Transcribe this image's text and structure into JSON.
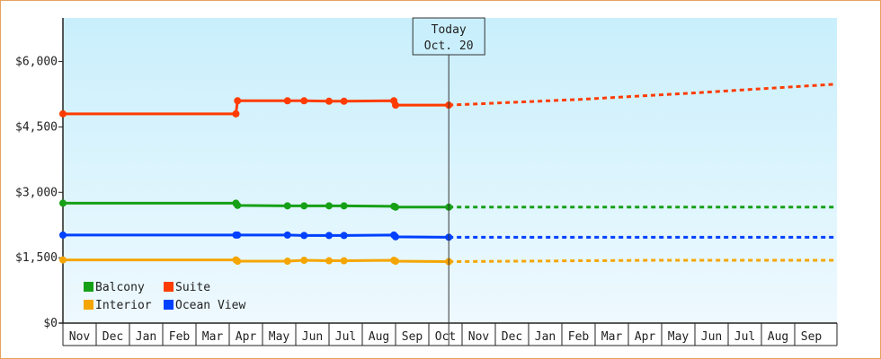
{
  "chart_data": {
    "type": "line",
    "title": "",
    "xlabel": "",
    "ylabel": "",
    "ylim": [
      0,
      7000
    ],
    "yticks": [
      0,
      1500,
      3000,
      4500,
      6000
    ],
    "ytick_labels": [
      "$0",
      "$1,500",
      "$3,000",
      "$4,500",
      "$6,000"
    ],
    "months": [
      "Nov",
      "Dec",
      "Jan",
      "Feb",
      "Mar",
      "Apr",
      "May",
      "Jun",
      "Jul",
      "Aug",
      "Sep",
      "Oct",
      "Nov",
      "Dec",
      "Jan",
      "Feb",
      "Mar",
      "Apr",
      "May",
      "Jun",
      "Jul",
      "Aug",
      "Sep"
    ],
    "grid": false,
    "today_marker": {
      "line1": "Today",
      "line2": "Oct. 20",
      "x": 11.6
    },
    "legend": {
      "placement": "bottom-left",
      "entries": [
        {
          "label": "Balcony",
          "color": "#16a016"
        },
        {
          "label": "Suite",
          "color": "#ff3c00"
        },
        {
          "label": "Interior",
          "color": "#f5a500"
        },
        {
          "label": "Ocean View",
          "color": "#0040ff"
        }
      ]
    },
    "series": [
      {
        "name": "Balcony",
        "color": "#16a016",
        "points": [
          [
            0,
            2750
          ],
          [
            5.2,
            2750
          ],
          [
            5.25,
            2700
          ],
          [
            6.75,
            2690
          ],
          [
            7.25,
            2690
          ],
          [
            8.0,
            2690
          ],
          [
            8.45,
            2690
          ],
          [
            9.95,
            2680
          ],
          [
            10.0,
            2660
          ],
          [
            11.6,
            2660
          ]
        ],
        "forecast": [
          [
            11.6,
            2660
          ],
          [
            23.2,
            2660
          ]
        ]
      },
      {
        "name": "Suite",
        "color": "#ff3c00",
        "points": [
          [
            0,
            4800
          ],
          [
            5.2,
            4800
          ],
          [
            5.25,
            5100
          ],
          [
            6.75,
            5100
          ],
          [
            7.25,
            5100
          ],
          [
            8.0,
            5090
          ],
          [
            8.45,
            5090
          ],
          [
            9.95,
            5100
          ],
          [
            10.0,
            5000
          ],
          [
            11.6,
            5000
          ]
        ],
        "forecast": [
          [
            11.6,
            5000
          ],
          [
            15.5,
            5130
          ],
          [
            19.0,
            5280
          ],
          [
            23.2,
            5480
          ]
        ]
      },
      {
        "name": "Interior",
        "color": "#f5a500",
        "points": [
          [
            0,
            1450
          ],
          [
            5.2,
            1450
          ],
          [
            5.25,
            1420
          ],
          [
            6.75,
            1420
          ],
          [
            7.25,
            1440
          ],
          [
            8.0,
            1430
          ],
          [
            8.45,
            1430
          ],
          [
            9.95,
            1440
          ],
          [
            10.0,
            1420
          ],
          [
            11.6,
            1410
          ]
        ],
        "forecast": [
          [
            11.6,
            1410
          ],
          [
            17.5,
            1440
          ],
          [
            23.2,
            1440
          ]
        ]
      },
      {
        "name": "Ocean View",
        "color": "#0040ff",
        "points": [
          [
            0,
            2020
          ],
          [
            5.2,
            2020
          ],
          [
            5.25,
            2020
          ],
          [
            6.75,
            2020
          ],
          [
            7.25,
            2010
          ],
          [
            8.0,
            2010
          ],
          [
            8.45,
            2010
          ],
          [
            9.95,
            2020
          ],
          [
            10.0,
            1980
          ],
          [
            11.6,
            1970
          ]
        ],
        "forecast": [
          [
            11.6,
            1970
          ],
          [
            23.2,
            1970
          ]
        ]
      }
    ]
  }
}
